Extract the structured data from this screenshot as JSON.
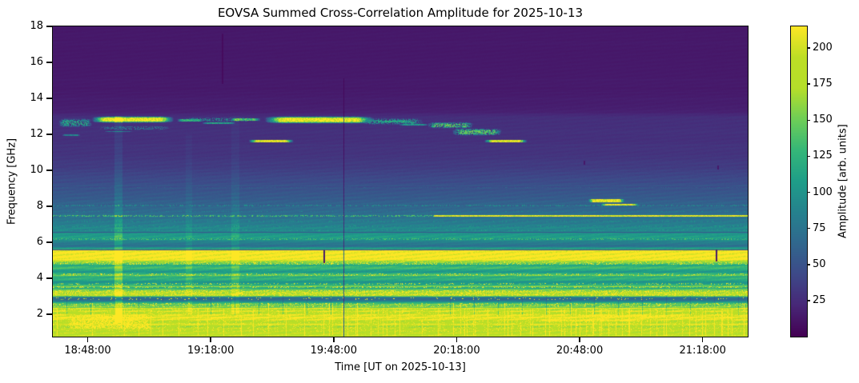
{
  "chart_data": {
    "type": "heatmap",
    "title": "EOVSA Summed Cross-Correlation Amplitude for 2025-10-13",
    "xlabel": "Time [UT on 2025-10-13]",
    "ylabel": "Frequency [GHz]",
    "colorbar_label": "Amplitude [arb. units]",
    "colormap": "viridis",
    "colormap_stops": [
      "#440154",
      "#482878",
      "#3e4a89",
      "#31688e",
      "#26828e",
      "#1f9e89",
      "#35b779",
      "#6ece58",
      "#b5de2b",
      "#bddf26",
      "#fde725"
    ],
    "x_range": [
      "18:39:30",
      "21:29:00"
    ],
    "x_ticks": [
      "18:48:00",
      "19:18:00",
      "19:48:00",
      "20:18:00",
      "20:48:00",
      "21:18:00"
    ],
    "y_range": [
      0.75,
      18
    ],
    "y_ticks": [
      2,
      4,
      6,
      8,
      10,
      12,
      14,
      16,
      18
    ],
    "color_range": [
      0,
      215
    ],
    "colorbar_ticks": [
      25,
      50,
      75,
      100,
      125,
      150,
      175,
      200
    ],
    "grid": false,
    "legend": "none",
    "background_profile": [
      [
        18,
        13
      ],
      [
        14.5,
        14
      ],
      [
        13.3,
        17
      ],
      [
        13.05,
        22
      ],
      [
        12.95,
        26
      ],
      [
        12.4,
        27
      ],
      [
        11.5,
        28
      ],
      [
        10.8,
        30
      ],
      [
        10.2,
        34
      ],
      [
        9.6,
        42
      ],
      [
        9.0,
        48
      ],
      [
        8.5,
        55
      ],
      [
        8.0,
        62
      ],
      [
        7.5,
        72
      ],
      [
        7.0,
        82
      ],
      [
        6.7,
        88
      ],
      [
        6.45,
        100
      ],
      [
        6.3,
        110
      ],
      [
        6.15,
        95
      ],
      [
        5.95,
        80
      ],
      [
        5.8,
        68
      ],
      [
        5.68,
        100
      ],
      [
        5.58,
        140
      ],
      [
        5.52,
        210
      ],
      [
        5.45,
        216
      ],
      [
        5.02,
        216
      ],
      [
        4.95,
        175
      ],
      [
        4.85,
        145
      ],
      [
        4.72,
        118
      ],
      [
        4.55,
        132
      ],
      [
        4.42,
        108
      ],
      [
        4.3,
        104
      ],
      [
        4.2,
        138
      ],
      [
        4.08,
        112
      ],
      [
        3.95,
        126
      ],
      [
        3.82,
        104
      ],
      [
        3.68,
        108
      ],
      [
        3.55,
        150
      ],
      [
        3.45,
        115
      ],
      [
        3.38,
        140
      ],
      [
        3.3,
        168
      ],
      [
        3.02,
        168
      ],
      [
        2.95,
        95
      ],
      [
        2.88,
        65
      ],
      [
        2.8,
        72
      ],
      [
        2.68,
        98
      ],
      [
        2.58,
        145
      ],
      [
        2.5,
        138
      ],
      [
        2.42,
        148
      ],
      [
        2.36,
        160
      ],
      [
        2.33,
        200
      ],
      [
        2.25,
        172
      ],
      [
        2.15,
        205
      ],
      [
        2.05,
        165
      ],
      [
        1.92,
        210
      ],
      [
        1.8,
        180
      ],
      [
        1.7,
        212
      ],
      [
        1.57,
        168
      ],
      [
        1.45,
        202
      ],
      [
        1.32,
        175
      ],
      [
        1.15,
        198
      ],
      [
        1.0,
        190
      ],
      [
        0.75,
        193
      ]
    ],
    "speckle_bands": [
      {
        "f0": 3.0,
        "f1": 3.35,
        "p": 0.45,
        "amp": 215
      },
      {
        "f0": 2.38,
        "f1": 2.6,
        "p": 0.22,
        "amp": 205
      },
      {
        "f0": 4.75,
        "f1": 4.95,
        "p": 0.3,
        "amp": 200
      },
      {
        "f0": 2.8,
        "f1": 2.92,
        "p": 0.06,
        "amp": 218
      },
      {
        "f0": 1.0,
        "f1": 2.35,
        "p": 0.12,
        "amp": 228
      },
      {
        "f0": 3.45,
        "f1": 3.56,
        "p": 0.3,
        "amp": 205
      },
      {
        "f0": 4.12,
        "f1": 4.26,
        "p": 0.22,
        "amp": 195
      },
      {
        "f0": 5.45,
        "f1": 5.58,
        "p": 0.25,
        "amp": 215
      },
      {
        "f0": 3.62,
        "f1": 3.72,
        "p": 0.2,
        "amp": 185
      }
    ],
    "lines": [
      {
        "f": 7.46,
        "h": 0.09,
        "amp": 128,
        "speckle": 0.55
      },
      {
        "f": 7.46,
        "h": 0.09,
        "amp": 205,
        "t0": 93,
        "t1": 169.5
      },
      {
        "f": 8.05,
        "h": 0.07,
        "amp": 90,
        "speckle": 0.4
      },
      {
        "f": 7.72,
        "h": 0.06,
        "amp": 80,
        "speckle": 0.35
      },
      {
        "f": 7.15,
        "h": 0.07,
        "amp": 85,
        "speckle": 0.4
      },
      {
        "f": 6.88,
        "h": 0.06,
        "amp": 92,
        "speckle": 0.4
      },
      {
        "f": 6.66,
        "h": 0.06,
        "amp": 96,
        "speckle": 0.35
      },
      {
        "f": 6.18,
        "h": 0.07,
        "amp": 125,
        "speckle": 0.5
      },
      {
        "f": 9.05,
        "h": 0.05,
        "amp": 55,
        "speckle": 0.3
      },
      {
        "f": 6.55,
        "h": 0.05,
        "amp": 55,
        "dark": true
      },
      {
        "f": 5.58,
        "h": 0.05,
        "amp": 40,
        "dark": true
      }
    ],
    "blobs": [
      {
        "t0": 9,
        "t1": 30,
        "f0": 12.62,
        "f1": 13.02,
        "amp": 216
      },
      {
        "t0": 51,
        "t1": 79,
        "f0": 12.58,
        "f1": 13.02,
        "amp": 216
      },
      {
        "t0": 1,
        "t1": 10,
        "f0": 12.35,
        "f1": 12.92,
        "amp": 110,
        "patch": 0.7
      },
      {
        "t0": 74.5,
        "t1": 91,
        "f0": 12.5,
        "f1": 12.92,
        "amp": 105,
        "patch": 0.6
      },
      {
        "t0": 91,
        "t1": 103,
        "f0": 12.3,
        "f1": 12.7,
        "amp": 135,
        "patch": 0.7
      },
      {
        "t0": 97,
        "t1": 110,
        "f0": 11.9,
        "f1": 12.35,
        "amp": 140,
        "patch": 0.7
      },
      {
        "t0": 30,
        "t1": 51,
        "f0": 12.68,
        "f1": 12.95,
        "amp": 95,
        "patch": 0.5
      },
      {
        "t0": 10,
        "t1": 30,
        "f0": 12.2,
        "f1": 12.5,
        "amp": 70,
        "patch": 0.5
      },
      {
        "t0": 0,
        "t1": 28,
        "f0": 0.78,
        "f1": 2.35,
        "amp": 222,
        "patch": 0.8
      }
    ],
    "dashes": [
      {
        "t0": 47.5,
        "t1": 59,
        "f": 11.62,
        "h": 0.15,
        "amp": 208
      },
      {
        "t0": 105,
        "t1": 116,
        "f": 11.62,
        "h": 0.14,
        "amp": 208
      },
      {
        "t0": 30,
        "t1": 37,
        "f": 12.78,
        "h": 0.1,
        "amp": 120
      },
      {
        "t0": 36,
        "t1": 45,
        "f": 12.6,
        "h": 0.09,
        "amp": 110
      },
      {
        "t0": 43,
        "t1": 51,
        "f": 12.82,
        "h": 0.1,
        "amp": 130
      },
      {
        "t0": 79,
        "t1": 88,
        "f": 12.72,
        "h": 0.1,
        "amp": 110
      },
      {
        "t0": 84,
        "t1": 92,
        "f": 12.55,
        "h": 0.09,
        "amp": 100
      },
      {
        "t0": 2,
        "t1": 7,
        "f": 11.95,
        "h": 0.08,
        "amp": 85
      },
      {
        "t0": 12,
        "t1": 20,
        "f": 12.15,
        "h": 0.08,
        "amp": 75
      },
      {
        "t0": 112,
        "t1": 150,
        "f": 1.62,
        "h": 0.09,
        "amp": 225
      },
      {
        "t0": 122,
        "t1": 160,
        "f": 1.9,
        "h": 0.07,
        "amp": 220
      },
      {
        "t0": 130,
        "t1": 140,
        "f": 8.32,
        "h": 0.16,
        "amp": 216
      },
      {
        "t0": 133,
        "t1": 143.5,
        "f": 8.08,
        "h": 0.1,
        "amp": 216
      }
    ],
    "rfi_grid": [
      {
        "seed": 7,
        "t0": 1,
        "t1": 169.5,
        "step_min": 2,
        "step_max": 4.5,
        "p": 0.85,
        "f0": 0.78,
        "f1": 2.3,
        "f1_tall": 2.62,
        "tall_p": 0.25,
        "amp": 235
      },
      {
        "seed": 13,
        "t0": 66,
        "t1": 169.5,
        "step_min": 1.4,
        "step_max": 2.4,
        "p": 0.8,
        "f0": 0.78,
        "f1": 2.28,
        "f1_tall": 2.6,
        "tall_p": 0.15,
        "amp": 230
      }
    ],
    "dark_comb": {
      "period": 5.85,
      "offset": 2.5,
      "width": 0.16,
      "f0": 1.95,
      "f1": 3.0,
      "mult": 0.8
    },
    "vertical_glows": [
      {
        "t0": 15,
        "t1": 17,
        "f0": 1.5,
        "f1": 13,
        "gain": 1.3
      },
      {
        "t0": 43.5,
        "t1": 45.5,
        "f0": 2,
        "f1": 13,
        "gain": 1.15
      },
      {
        "t0": 32.5,
        "t1": 34,
        "f0": 2,
        "f1": 12,
        "gain": 1.12
      }
    ],
    "dark_vlines": [
      {
        "t": 71.0,
        "f0": 0.75,
        "f1": 15.1,
        "w": 0.35,
        "mult": 0.3
      },
      {
        "t": 41.4,
        "f0": 14.8,
        "f1": 17.6,
        "w": 0.3,
        "mult": 0.45
      }
    ],
    "dark_dashes": [
      {
        "t": 66.2,
        "f0": 4.85,
        "f1": 5.55
      },
      {
        "t": 161.9,
        "f0": 4.95,
        "f1": 5.6
      },
      {
        "t": 129.6,
        "f0": 10.3,
        "f1": 10.52
      },
      {
        "t": 162.3,
        "f0": 10.05,
        "f1": 10.25
      }
    ]
  }
}
